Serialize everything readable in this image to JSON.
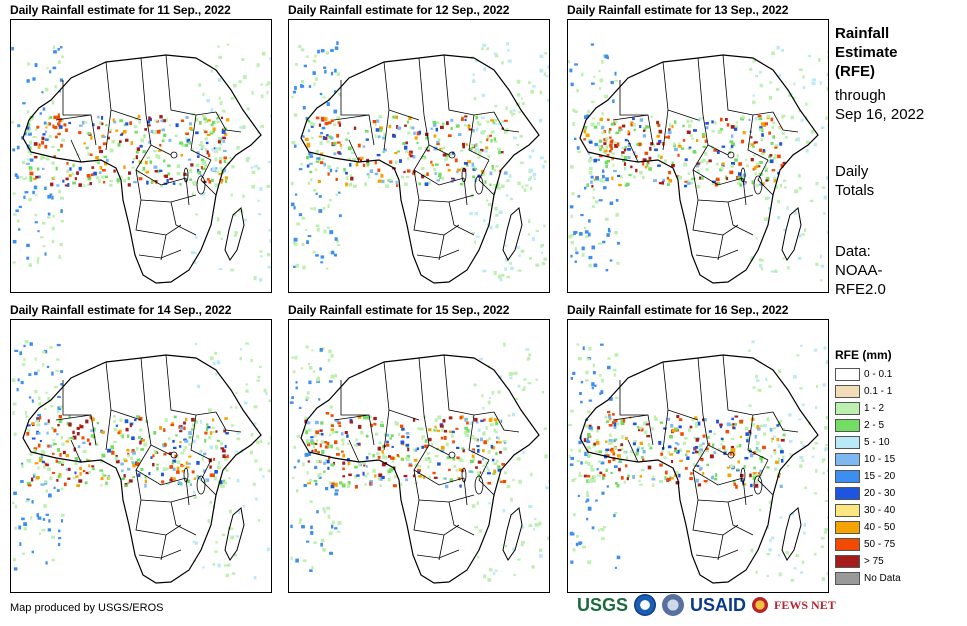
{
  "panels": [
    {
      "title": "Daily Rainfall estimate for 11 Sep., 2022",
      "seed": 11
    },
    {
      "title": "Daily Rainfall estimate for 12 Sep., 2022",
      "seed": 12
    },
    {
      "title": "Daily Rainfall estimate for 13 Sep., 2022",
      "seed": 13
    },
    {
      "title": "Daily Rainfall estimate for 14 Sep., 2022",
      "seed": 14
    },
    {
      "title": "Daily Rainfall estimate for 15 Sep., 2022",
      "seed": 15
    },
    {
      "title": "Daily Rainfall estimate for 16 Sep., 2022",
      "seed": 16
    }
  ],
  "side": {
    "title_lines": [
      "Rainfall",
      "Estimate",
      "(RFE)"
    ],
    "through_lines": [
      "through",
      "Sep 16, 2022"
    ],
    "totals_lines": [
      "Daily",
      "Totals"
    ],
    "data_lines": [
      "Data:",
      "NOAA-",
      "RFE2.0"
    ]
  },
  "legend": {
    "title": "RFE (mm)",
    "items": [
      {
        "label": "0 - 0.1",
        "color": "#ffffff"
      },
      {
        "label": "0.1 - 1",
        "color": "#f3dcb8"
      },
      {
        "label": "1 - 2",
        "color": "#bdf0b0"
      },
      {
        "label": "2 - 5",
        "color": "#73dd63"
      },
      {
        "label": "5 - 10",
        "color": "#b9eaf5"
      },
      {
        "label": "10 - 15",
        "color": "#7fb8f0"
      },
      {
        "label": "15 - 20",
        "color": "#3c8ef0"
      },
      {
        "label": "20 - 30",
        "color": "#1d55e0"
      },
      {
        "label": "30 - 40",
        "color": "#fbe680"
      },
      {
        "label": "40 - 50",
        "color": "#f5a300"
      },
      {
        "label": "50 - 75",
        "color": "#f24a00"
      },
      {
        "label": "> 75",
        "color": "#a51c1c"
      },
      {
        "label": "No Data",
        "color": "#999999"
      }
    ]
  },
  "credit": "Map produced by USGS/EROS",
  "logos": {
    "usgs": "USGS",
    "usaid": "USAID",
    "fews": "FEWS NET"
  },
  "colors": {
    "country_border": "#000000",
    "map_bg": "#ffffff"
  }
}
